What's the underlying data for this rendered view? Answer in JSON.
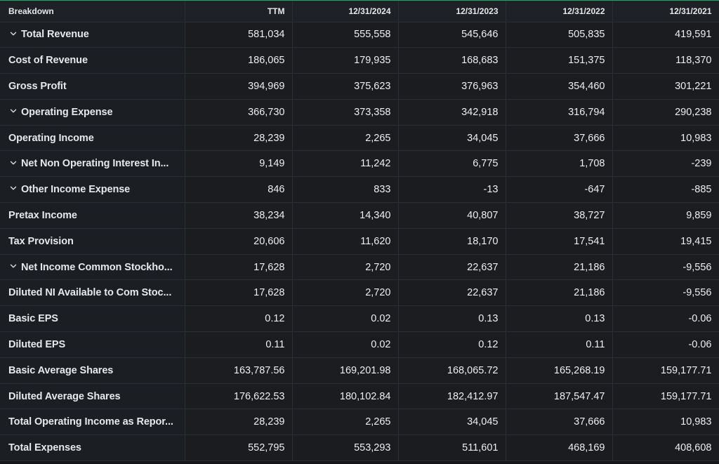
{
  "table": {
    "headers": [
      "Breakdown",
      "TTM",
      "12/31/2024",
      "12/31/2023",
      "12/31/2022",
      "12/31/2021"
    ],
    "rows": [
      {
        "label": "Total Revenue",
        "expandable": true,
        "values": [
          "581,034",
          "555,558",
          "545,646",
          "505,835",
          "419,591"
        ]
      },
      {
        "label": "Cost of Revenue",
        "expandable": false,
        "values": [
          "186,065",
          "179,935",
          "168,683",
          "151,375",
          "118,370"
        ]
      },
      {
        "label": "Gross Profit",
        "expandable": false,
        "values": [
          "394,969",
          "375,623",
          "376,963",
          "354,460",
          "301,221"
        ]
      },
      {
        "label": "Operating Expense",
        "expandable": true,
        "values": [
          "366,730",
          "373,358",
          "342,918",
          "316,794",
          "290,238"
        ]
      },
      {
        "label": "Operating Income",
        "expandable": false,
        "values": [
          "28,239",
          "2,265",
          "34,045",
          "37,666",
          "10,983"
        ]
      },
      {
        "label": "Net Non Operating Interest In...",
        "expandable": true,
        "values": [
          "9,149",
          "11,242",
          "6,775",
          "1,708",
          "-239"
        ]
      },
      {
        "label": "Other Income Expense",
        "expandable": true,
        "values": [
          "846",
          "833",
          "-13",
          "-647",
          "-885"
        ]
      },
      {
        "label": "Pretax Income",
        "expandable": false,
        "values": [
          "38,234",
          "14,340",
          "40,807",
          "38,727",
          "9,859"
        ]
      },
      {
        "label": "Tax Provision",
        "expandable": false,
        "values": [
          "20,606",
          "11,620",
          "18,170",
          "17,541",
          "19,415"
        ]
      },
      {
        "label": "Net Income Common Stockho...",
        "expandable": true,
        "values": [
          "17,628",
          "2,720",
          "22,637",
          "21,186",
          "-9,556"
        ]
      },
      {
        "label": "Diluted NI Available to Com Stoc...",
        "expandable": false,
        "values": [
          "17,628",
          "2,720",
          "22,637",
          "21,186",
          "-9,556"
        ]
      },
      {
        "label": "Basic EPS",
        "expandable": false,
        "values": [
          "0.12",
          "0.02",
          "0.13",
          "0.13",
          "-0.06"
        ]
      },
      {
        "label": "Diluted EPS",
        "expandable": false,
        "values": [
          "0.11",
          "0.02",
          "0.12",
          "0.11",
          "-0.06"
        ]
      },
      {
        "label": "Basic Average Shares",
        "expandable": false,
        "values": [
          "163,787.56",
          "169,201.98",
          "168,065.72",
          "165,268.19",
          "159,177.71"
        ]
      },
      {
        "label": "Diluted Average Shares",
        "expandable": false,
        "values": [
          "176,622.53",
          "180,102.84",
          "182,412.97",
          "187,547.47",
          "159,177.71"
        ]
      },
      {
        "label": "Total Operating Income as Repor...",
        "expandable": false,
        "values": [
          "28,239",
          "2,265",
          "34,045",
          "37,666",
          "10,983"
        ]
      },
      {
        "label": "Total Expenses",
        "expandable": false,
        "values": [
          "552,795",
          "553,293",
          "511,601",
          "468,169",
          "408,608"
        ]
      }
    ]
  },
  "icons": {
    "expand": "chevron-down-icon"
  },
  "colors": {
    "accent_top_border": "#1fa86a",
    "background": "#15171b",
    "text": "#e6e8eb"
  }
}
